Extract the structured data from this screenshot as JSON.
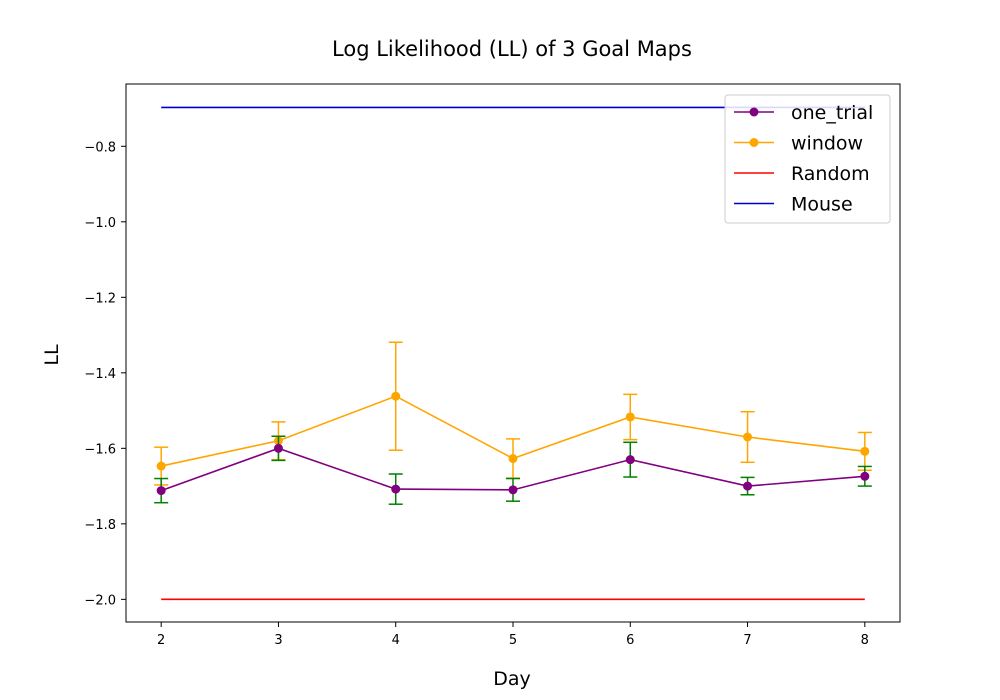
{
  "chart_data": {
    "type": "line",
    "title": "Log Likelihood (LL) of 3 Goal Maps",
    "xlabel": "Day",
    "ylabel": "LL",
    "x": [
      2,
      3,
      4,
      5,
      6,
      7,
      8
    ],
    "xlim": [
      1.7,
      8.3
    ],
    "ylim": [
      -2.06,
      -0.635
    ],
    "xticks": [
      2,
      3,
      4,
      5,
      6,
      7,
      8
    ],
    "yticks": [
      -2.0,
      -1.8,
      -1.6,
      -1.4,
      -1.2,
      -1.0,
      -0.8
    ],
    "ytick_labels": [
      "−2.0",
      "−1.8",
      "−1.6",
      "−1.4",
      "−1.2",
      "−1.0",
      "−0.8"
    ],
    "grid": false,
    "legend_position": "top-right",
    "series": [
      {
        "name": "one_trial",
        "color": "#800080",
        "error_color": "#008000",
        "marker": "circle",
        "values": [
          -1.712,
          -1.6,
          -1.708,
          -1.71,
          -1.63,
          -1.7,
          -1.674
        ],
        "errors": [
          0.032,
          0.032,
          0.04,
          0.03,
          0.046,
          0.023,
          0.026
        ]
      },
      {
        "name": "window",
        "color": "#FFA500",
        "error_color": "#FFA500",
        "marker": "circle",
        "values": [
          -1.647,
          -1.58,
          -1.462,
          -1.627,
          -1.517,
          -1.57,
          -1.608
        ],
        "errors": [
          0.05,
          0.05,
          0.143,
          0.052,
          0.06,
          0.067,
          0.05
        ]
      },
      {
        "name": "Random",
        "color": "#FF0000",
        "marker": "none",
        "values": [
          -2.0,
          -2.0,
          -2.0,
          -2.0,
          -2.0,
          -2.0,
          -2.0
        ]
      },
      {
        "name": "Mouse",
        "color": "#0000CD",
        "marker": "none",
        "values": [
          -0.697,
          -0.697,
          -0.697,
          -0.697,
          -0.697,
          -0.697,
          -0.697
        ]
      }
    ]
  }
}
